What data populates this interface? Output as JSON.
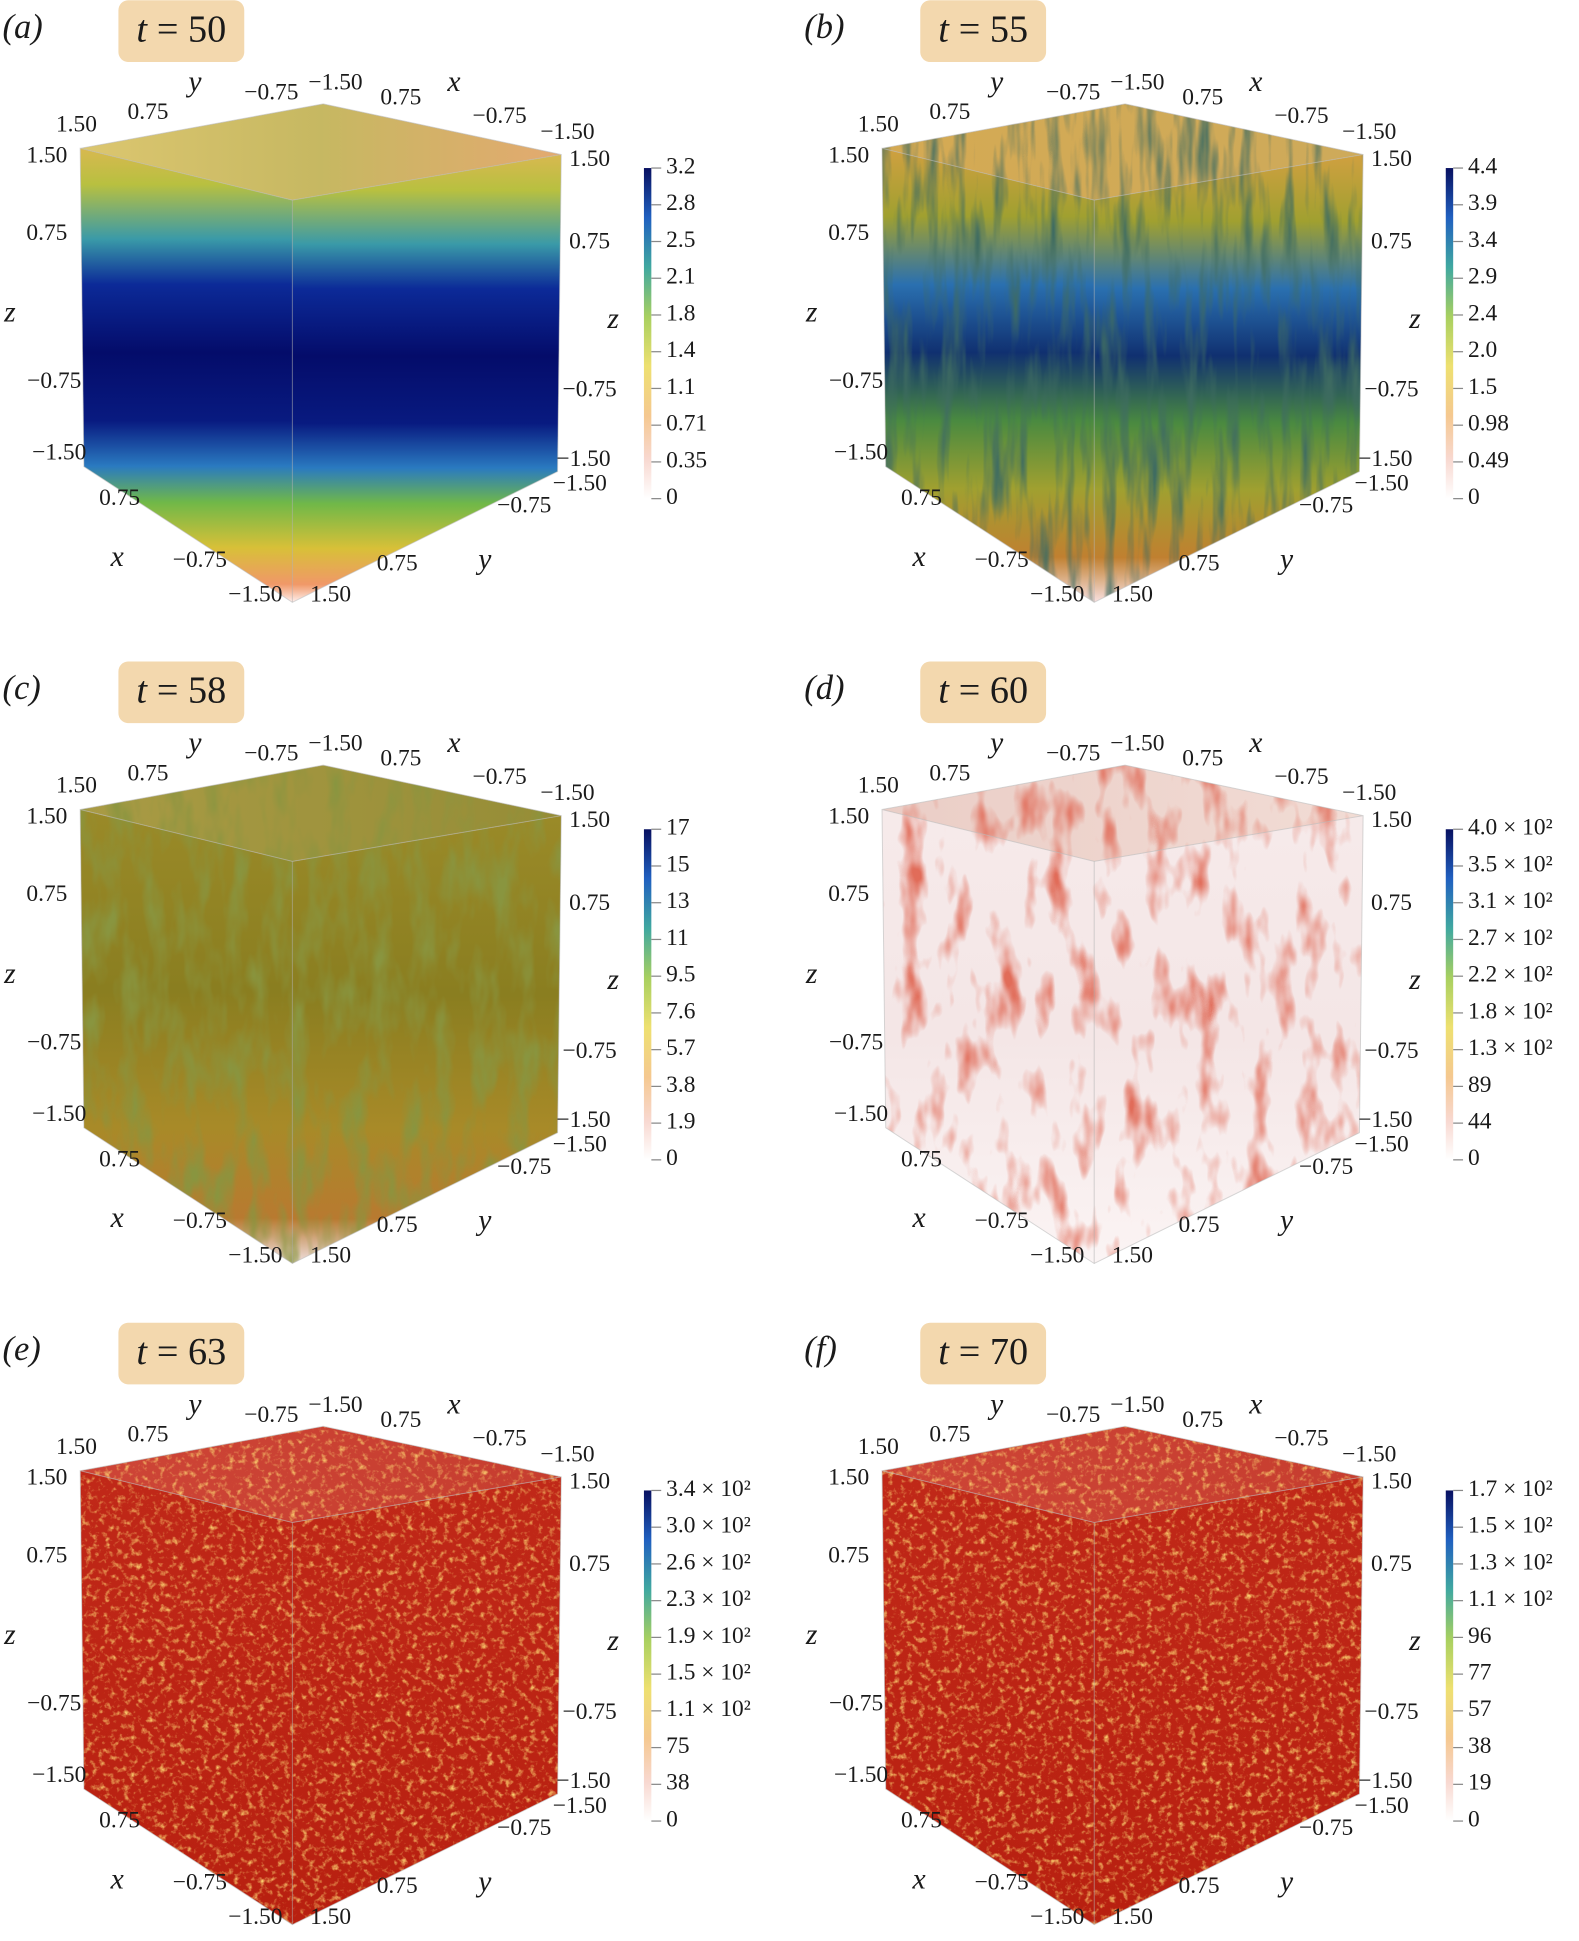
{
  "cube_axes": {
    "x": "x",
    "y": "y",
    "z": "z",
    "ticks": [
      "1.50",
      "0.75",
      "−0.75",
      "−1.50"
    ]
  },
  "time_var": "t",
  "panels": [
    {
      "label": "(a)",
      "time": "= 50",
      "colorbar": [
        "3.2",
        "2.8",
        "2.5",
        "2.1",
        "1.8",
        "1.4",
        "1.1",
        "0.71",
        "0.35",
        "0"
      ]
    },
    {
      "label": "(b)",
      "time": "= 55",
      "colorbar": [
        "4.4",
        "3.9",
        "3.4",
        "2.9",
        "2.4",
        "2.0",
        "1.5",
        "0.98",
        "0.49",
        "0"
      ]
    },
    {
      "label": "(c)",
      "time": "= 58",
      "colorbar": [
        "17",
        "15",
        "13",
        "11",
        "9.5",
        "7.6",
        "5.7",
        "3.8",
        "1.9",
        "0"
      ]
    },
    {
      "label": "(d)",
      "time": "= 60",
      "colorbar": [
        "4.0 × 10²",
        "3.5 × 10²",
        "3.1 × 10²",
        "2.7 × 10²",
        "2.2 × 10²",
        "1.8 × 10²",
        "1.3 × 10²",
        "89",
        "44",
        "0"
      ]
    },
    {
      "label": "(e)",
      "time": "= 63",
      "colorbar": [
        "3.4 × 10²",
        "3.0 × 10²",
        "2.6 × 10²",
        "2.3 × 10²",
        "1.9 × 10²",
        "1.5 × 10²",
        "1.1 × 10²",
        "75",
        "38",
        "0"
      ]
    },
    {
      "label": "(f)",
      "time": "= 70",
      "colorbar": [
        "1.7 × 10²",
        "1.5 × 10²",
        "1.3 × 10²",
        "1.1 × 10²",
        "96",
        "77",
        "57",
        "38",
        "19",
        "0"
      ]
    }
  ]
}
